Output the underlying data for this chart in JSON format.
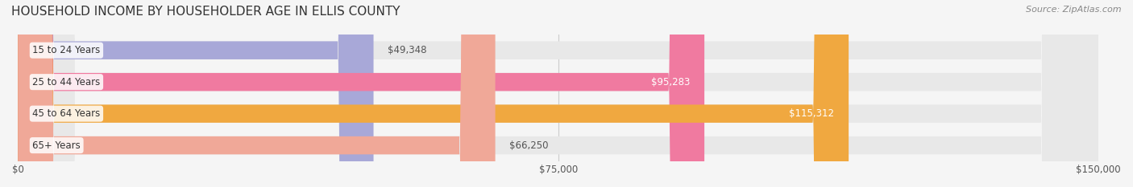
{
  "title": "HOUSEHOLD INCOME BY HOUSEHOLDER AGE IN ELLIS COUNTY",
  "source": "Source: ZipAtlas.com",
  "categories": [
    "15 to 24 Years",
    "25 to 44 Years",
    "45 to 64 Years",
    "65+ Years"
  ],
  "values": [
    49348,
    95283,
    115312,
    66250
  ],
  "bar_colors": [
    "#a8a8d8",
    "#f07aa0",
    "#f0a840",
    "#f0a898"
  ],
  "bar_edge_colors": [
    "#a0a0cc",
    "#e06890",
    "#e09830",
    "#e09888"
  ],
  "label_colors": [
    "#555555",
    "#ffffff",
    "#ffffff",
    "#555555"
  ],
  "background_color": "#f5f5f5",
  "bar_background_color": "#e8e8e8",
  "xlim": [
    0,
    150000
  ],
  "xticks": [
    0,
    75000,
    150000
  ],
  "xticklabels": [
    "$0",
    "$75,000",
    "$150,000"
  ],
  "bar_height": 0.55,
  "figsize": [
    14.06,
    2.33
  ],
  "dpi": 100
}
